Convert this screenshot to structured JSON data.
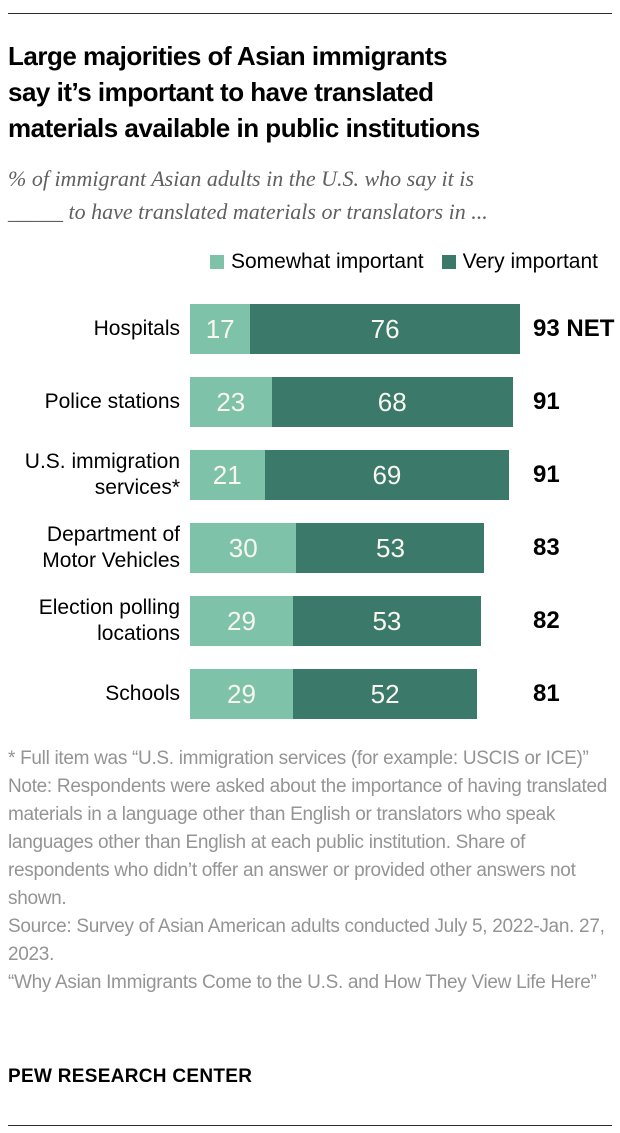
{
  "header": {
    "title": "Large majorities of Asian immigrants\nsay it’s important to have translated\nmaterials available in public institutions",
    "subtitle": "% of immigrant Asian adults in the U.S. who say it is\n_____ to have translated materials or translators in ..."
  },
  "legend": [
    {
      "label": "Somewhat important",
      "color": "#7ec2a9"
    },
    {
      "label": "Very important",
      "color": "#3b7a6a"
    }
  ],
  "chart_data": {
    "type": "bar",
    "orientation": "horizontal",
    "stacked": true,
    "units": "percent",
    "categories": [
      "Hospitals",
      "Police stations",
      "U.S. immigration services*",
      "Department of Motor Vehicles",
      "Election polling locations",
      "Schools"
    ],
    "series": [
      {
        "name": "Somewhat important",
        "color": "#7ec2a9",
        "values": [
          17,
          23,
          21,
          30,
          29,
          29
        ]
      },
      {
        "name": "Very important",
        "color": "#3b7a6a",
        "values": [
          76,
          68,
          69,
          53,
          53,
          52
        ]
      }
    ],
    "net_labels": [
      "93 NET",
      "91",
      "91",
      "83",
      "82",
      "81"
    ],
    "xlim": [
      0,
      100
    ],
    "grid": false,
    "legend_position": "top",
    "value_label_color": "#f8f6ef"
  },
  "footnotes": [
    "* Full item was “U.S. immigration services (for example: USCIS or ICE)”",
    "Note: Respondents were asked about the importance of having translated materials in a language other than English or translators who speak languages other than English at each public institution. Share of respondents who didn’t offer an answer or provided other answers not shown.",
    "Source: Survey of Asian American adults conducted July 5, 2022-Jan. 27, 2023.",
    "“Why Asian Immigrants Come to the U.S. and How They View Life Here”"
  ],
  "branding": "PEW RESEARCH CENTER"
}
